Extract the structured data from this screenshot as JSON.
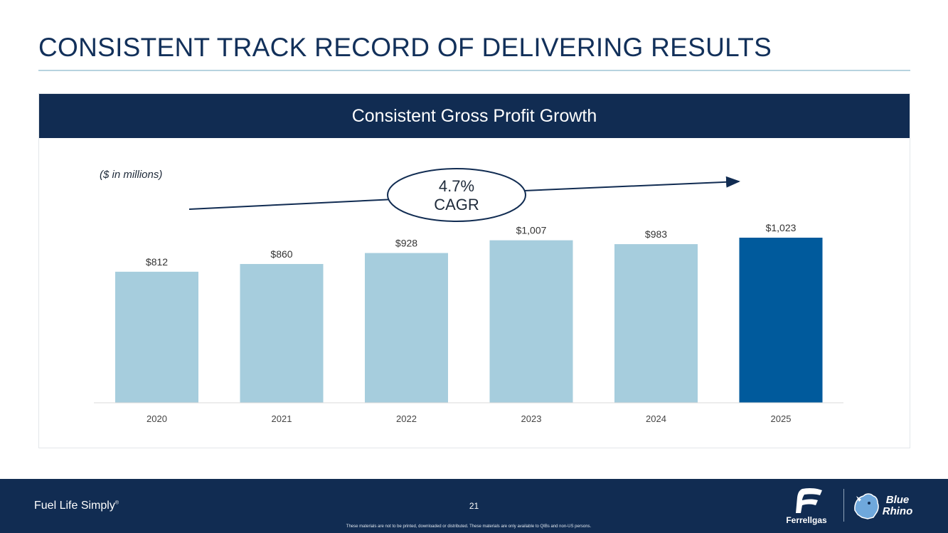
{
  "slide": {
    "title": "CONSISTENT TRACK RECORD OF DELIVERING RESULTS",
    "panel_header": "Consistent Gross Profit Growth",
    "units_note": "($ in millions)",
    "cagr_value": "4.7%",
    "cagr_label": "CAGR"
  },
  "chart_data": {
    "type": "bar",
    "categories": [
      "2020",
      "2021",
      "2022",
      "2023",
      "2024",
      "2025"
    ],
    "values": [
      812,
      860,
      928,
      1007,
      983,
      1023
    ],
    "data_labels": [
      "$812",
      "$860",
      "$928",
      "$1,007",
      "$983",
      "$1,023"
    ],
    "title": "Consistent Gross Profit Growth",
    "ylabel": "($ in millions)",
    "ylim": [
      0,
      1023
    ],
    "grid": false,
    "colors": {
      "bar": "#a6cddd",
      "highlight": "#005a9c"
    },
    "highlight_index": 5
  },
  "footer": {
    "tagline": "Fuel Life Simply",
    "tagline_mark": "®",
    "page_number": "21",
    "disclaimer": "These materials are not to be printed, downloaded or distributed. These materials are only available to QIBs and non-US persons.",
    "logo_ferrellgas_text": "Ferrellgas",
    "logo_bluerhino_line1": "Blue",
    "logo_bluerhino_line2": "Rhino"
  },
  "colors": {
    "navy": "#112c52",
    "title_text": "#12305a",
    "rule": "#b7d3df"
  }
}
